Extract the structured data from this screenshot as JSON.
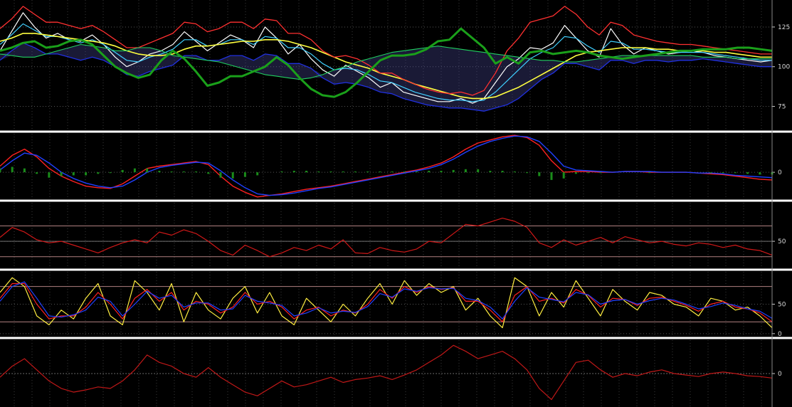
{
  "chart_data": [
    {
      "type": "line",
      "panel": "price-overlay",
      "yticks": [
        75,
        100,
        125
      ],
      "ylim": [
        60,
        142
      ],
      "grid": true,
      "series": [
        {
          "values": [
            110,
            122,
            134,
            125,
            118,
            121,
            117,
            116,
            120,
            114,
            106,
            100,
            103,
            108,
            110,
            114,
            122,
            116,
            110,
            115,
            120,
            117,
            112,
            125,
            118,
            108,
            114,
            105,
            98,
            94,
            101,
            97,
            93,
            87,
            90,
            84,
            82,
            80,
            78,
            78,
            80,
            77,
            80,
            90,
            100,
            105,
            112,
            111,
            115,
            126,
            118,
            110,
            106,
            124,
            114,
            108,
            112,
            110,
            108,
            109,
            110,
            109,
            107,
            106,
            105,
            104,
            103,
            104
          ],
          "color": "#ffffff"
        },
        {
          "values": [
            114,
            120,
            127,
            123,
            119,
            119,
            117,
            115,
            117,
            114,
            109,
            104,
            103,
            106,
            108,
            111,
            117,
            117,
            113,
            114,
            117,
            117,
            114,
            119,
            118,
            112,
            112,
            108,
            102,
            98,
            99,
            98,
            95,
            91,
            90,
            87,
            84,
            82,
            80,
            79,
            79,
            78,
            79,
            84,
            91,
            98,
            105,
            109,
            112,
            119,
            118,
            113,
            109,
            116,
            115,
            111,
            111,
            110,
            109,
            109,
            109,
            109,
            108,
            107,
            106,
            105,
            104,
            104
          ],
          "color": "#40d0ff"
        },
        {
          "values": [
            116,
            118,
            121,
            121,
            120,
            119,
            118,
            117,
            116,
            115,
            113,
            110,
            108,
            107,
            107,
            108,
            111,
            113,
            113,
            114,
            115,
            116,
            116,
            117,
            117,
            116,
            114,
            112,
            109,
            106,
            103,
            101,
            99,
            96,
            94,
            92,
            89,
            87,
            85,
            83,
            81,
            80,
            80,
            81,
            84,
            87,
            91,
            95,
            99,
            103,
            107,
            109,
            110,
            111,
            112,
            112,
            112,
            111,
            111,
            110,
            110,
            110,
            109,
            109,
            108,
            107,
            106,
            106
          ],
          "color": "#ffff40"
        },
        {
          "values": [
            124,
            130,
            138,
            133,
            128,
            128,
            126,
            124,
            126,
            122,
            117,
            112,
            112,
            115,
            118,
            121,
            128,
            127,
            122,
            124,
            128,
            128,
            124,
            130,
            129,
            121,
            121,
            117,
            110,
            106,
            107,
            105,
            101,
            96,
            96,
            92,
            89,
            86,
            84,
            83,
            84,
            82,
            85,
            96,
            110,
            118,
            128,
            130,
            132,
            138,
            133,
            125,
            120,
            128,
            126,
            120,
            118,
            116,
            115,
            114,
            114,
            113,
            112,
            111,
            110,
            109,
            108,
            108
          ],
          "color": "#ff3030"
        },
        {
          "values": [
            104,
            110,
            115,
            112,
            108,
            108,
            106,
            104,
            106,
            104,
            100,
            95,
            94,
            97,
            99,
            101,
            107,
            107,
            104,
            104,
            107,
            107,
            104,
            108,
            107,
            102,
            102,
            99,
            93,
            89,
            90,
            89,
            87,
            84,
            83,
            80,
            78,
            76,
            75,
            74,
            74,
            73,
            72,
            74,
            76,
            80,
            86,
            92,
            96,
            102,
            102,
            100,
            98,
            104,
            104,
            102,
            104,
            104,
            103,
            104,
            104,
            105,
            104,
            103,
            102,
            101,
            100,
            100
          ],
          "color": "#2030e0"
        },
        {
          "values": [
            108,
            107,
            106,
            106,
            108,
            110,
            112,
            114,
            113,
            112,
            110,
            110,
            112,
            112,
            110,
            107,
            106,
            105,
            104,
            103,
            101,
            99,
            97,
            95,
            94,
            93,
            92,
            93,
            95,
            98,
            100,
            103,
            105,
            107,
            109,
            110,
            111,
            112,
            113,
            112,
            111,
            110,
            109,
            108,
            107,
            106,
            105,
            104,
            104,
            103,
            103,
            104,
            105,
            106,
            107,
            107,
            107,
            107,
            107,
            107,
            107,
            106,
            106,
            106,
            105,
            105,
            105,
            105
          ],
          "color": "#20d060"
        },
        {
          "values": [
            110,
            112,
            115,
            116,
            112,
            113,
            116,
            117,
            114,
            107,
            100,
            96,
            93,
            95,
            104,
            110,
            105,
            97,
            88,
            90,
            94,
            94,
            97,
            100,
            106,
            101,
            93,
            86,
            82,
            81,
            84,
            90,
            97,
            104,
            107,
            107,
            108,
            111,
            116,
            117,
            124,
            118,
            112,
            102,
            106,
            102,
            109,
            110,
            108,
            109,
            110,
            109,
            107,
            106,
            105,
            106,
            107,
            108,
            109,
            110,
            110,
            111,
            111,
            111,
            112,
            112,
            111,
            110
          ],
          "color": "#1aa01a"
        }
      ]
    },
    {
      "type": "line",
      "panel": "macd",
      "yticks": [
        0
      ],
      "ylim": [
        -3.5,
        5
      ],
      "grid": true,
      "series": [
        {
          "values": [
            0.8,
            2.2,
            3.0,
            2.0,
            0.5,
            -0.5,
            -1.2,
            -1.8,
            -2.0,
            -2.1,
            -1.5,
            -0.5,
            0.5,
            0.8,
            1.0,
            1.2,
            1.4,
            1.0,
            -0.5,
            -1.8,
            -2.6,
            -3.2,
            -3.0,
            -2.8,
            -2.5,
            -2.2,
            -2.0,
            -1.8,
            -1.5,
            -1.2,
            -0.9,
            -0.6,
            -0.3,
            0.0,
            0.3,
            0.7,
            1.2,
            2.0,
            3.0,
            3.8,
            4.2,
            4.6,
            4.8,
            4.5,
            3.5,
            1.5,
            0.0,
            0.1,
            0.1,
            0.0,
            0.0,
            0.1,
            0.1,
            0.0,
            0.0,
            0.0,
            0.0,
            -0.1,
            -0.2,
            -0.3,
            -0.5,
            -0.7,
            -0.9,
            -1.0
          ],
          "color": "#ff2020"
        },
        {
          "values": [
            0.3,
            1.5,
            2.5,
            2.2,
            1.2,
            0.0,
            -0.8,
            -1.4,
            -1.8,
            -2.0,
            -1.8,
            -1.0,
            0.0,
            0.6,
            0.9,
            1.1,
            1.3,
            1.2,
            0.2,
            -1.0,
            -2.0,
            -2.8,
            -3.0,
            -2.9,
            -2.7,
            -2.4,
            -2.1,
            -1.9,
            -1.6,
            -1.3,
            -1.0,
            -0.7,
            -0.4,
            -0.1,
            0.2,
            0.5,
            1.0,
            1.7,
            2.6,
            3.4,
            4.0,
            4.4,
            4.7,
            4.6,
            4.0,
            2.5,
            0.8,
            0.3,
            0.2,
            0.1,
            0.0,
            0.1,
            0.1,
            0.1,
            0.0,
            0.0,
            0.0,
            -0.1,
            -0.1,
            -0.2,
            -0.4,
            -0.5,
            -0.6,
            -0.7
          ],
          "color": "#2040ff"
        },
        {
          "values": [
            0.5,
            0.7,
            0.5,
            -0.2,
            -0.7,
            -0.5,
            -0.4,
            -0.4,
            -0.2,
            -0.1,
            0.3,
            0.5,
            0.5,
            0.2,
            0.1,
            0.1,
            0.1,
            -0.2,
            -0.7,
            -0.8,
            -0.6,
            -0.4,
            0.0,
            0.1,
            0.2,
            0.2,
            0.1,
            0.1,
            0.1,
            0.1,
            0.1,
            0.1,
            0.1,
            0.1,
            0.1,
            0.2,
            0.2,
            0.3,
            0.4,
            0.4,
            0.2,
            0.2,
            0.1,
            -0.1,
            -0.5,
            -1.0,
            -0.8,
            -0.2,
            -0.1,
            -0.1,
            0.0,
            0.0,
            0.0,
            -0.1,
            0.0,
            0.0,
            0.0,
            0.0,
            -0.1,
            -0.1,
            -0.1,
            -0.2,
            -0.3,
            -0.3
          ],
          "color": "#1a8c1a"
        }
      ]
    },
    {
      "type": "line",
      "panel": "rsi",
      "yticks": [
        50
      ],
      "ylim": [
        15,
        100
      ],
      "grid": true,
      "series": [
        {
          "values": [
            55,
            68,
            62,
            52,
            48,
            50,
            45,
            40,
            35,
            42,
            48,
            52,
            48,
            62,
            58,
            65,
            60,
            50,
            38,
            32,
            45,
            38,
            30,
            35,
            42,
            38,
            45,
            40,
            52,
            35,
            34,
            42,
            38,
            36,
            40,
            50,
            48,
            60,
            72,
            70,
            75,
            80,
            76,
            68,
            48,
            42,
            52,
            45,
            50,
            55,
            48,
            56,
            52,
            48,
            50,
            46,
            44,
            48,
            46,
            42,
            45,
            40,
            38,
            32
          ],
          "color": "#d01818"
        }
      ],
      "reference_lines": [
        30,
        50,
        70
      ]
    },
    {
      "type": "line",
      "panel": "stochastic",
      "yticks": [
        0,
        50
      ],
      "ylim": [
        -5,
        105
      ],
      "grid": true,
      "series": [
        {
          "values": [
            70,
            95,
            80,
            30,
            15,
            40,
            25,
            60,
            85,
            30,
            15,
            90,
            70,
            40,
            85,
            20,
            70,
            40,
            25,
            60,
            80,
            35,
            70,
            30,
            15,
            60,
            40,
            20,
            50,
            30,
            60,
            85,
            50,
            90,
            65,
            85,
            70,
            80,
            40,
            60,
            30,
            10,
            95,
            80,
            30,
            70,
            45,
            90,
            60,
            30,
            75,
            55,
            40,
            70,
            65,
            50,
            45,
            30,
            60,
            55,
            40,
            45,
            30,
            10
          ],
          "color": "#ffee40"
        },
        {
          "values": [
            60,
            85,
            85,
            50,
            25,
            30,
            30,
            45,
            70,
            50,
            25,
            60,
            75,
            55,
            70,
            40,
            55,
            50,
            35,
            45,
            70,
            50,
            55,
            45,
            25,
            40,
            45,
            30,
            40,
            35,
            50,
            75,
            60,
            80,
            70,
            80,
            75,
            78,
            55,
            55,
            40,
            20,
            65,
            80,
            55,
            60,
            52,
            75,
            65,
            45,
            60,
            58,
            48,
            60,
            62,
            55,
            48,
            38,
            50,
            55,
            45,
            42,
            35,
            20
          ],
          "color": "#ff2020"
        },
        {
          "values": [
            55,
            80,
            88,
            60,
            30,
            28,
            32,
            40,
            62,
            55,
            30,
            50,
            72,
            60,
            65,
            45,
            52,
            52,
            40,
            42,
            65,
            55,
            52,
            48,
            30,
            35,
            44,
            35,
            38,
            36,
            46,
            68,
            62,
            76,
            72,
            78,
            76,
            77,
            60,
            56,
            45,
            25,
            55,
            78,
            62,
            58,
            54,
            70,
            66,
            50,
            56,
            58,
            50,
            56,
            60,
            57,
            50,
            42,
            46,
            52,
            48,
            42,
            38,
            26
          ],
          "color": "#2040ff"
        }
      ],
      "reference_lines": [
        20,
        80
      ]
    },
    {
      "type": "line",
      "panel": "momentum",
      "yticks": [
        0
      ],
      "ylim": [
        -45,
        45
      ],
      "grid": true,
      "series": [
        {
          "values": [
            -5,
            10,
            20,
            5,
            -10,
            -20,
            -25,
            -22,
            -18,
            -20,
            -10,
            5,
            25,
            15,
            10,
            0,
            -5,
            8,
            -5,
            -15,
            -25,
            -30,
            -20,
            -10,
            -18,
            -15,
            -10,
            -5,
            -12,
            -8,
            -6,
            -3,
            -8,
            -2,
            5,
            15,
            25,
            38,
            30,
            20,
            25,
            30,
            20,
            5,
            -20,
            -35,
            -10,
            15,
            18,
            5,
            -5,
            0,
            -3,
            2,
            5,
            0,
            -2,
            -4,
            0,
            2,
            0,
            -3,
            -4,
            -6
          ],
          "color": "#c01818"
        }
      ],
      "reference_lines": [
        0
      ]
    }
  ]
}
